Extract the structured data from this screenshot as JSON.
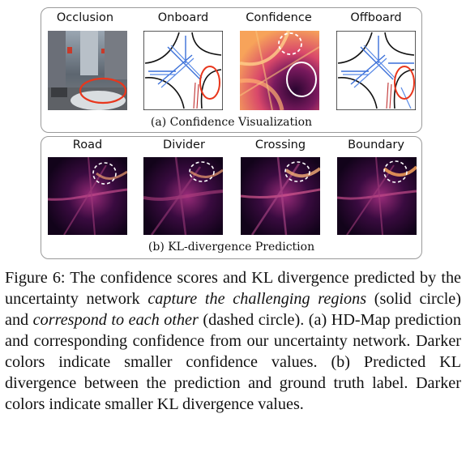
{
  "panel_a": {
    "labels": [
      "Occlusion",
      "Onboard",
      "Confidence",
      "Offboard"
    ],
    "caption": "(a) Confidence Visualization"
  },
  "panel_b": {
    "labels": [
      "Road",
      "Divider",
      "Crossing",
      "Boundary"
    ],
    "caption": "(b) KL-divergence Prediction"
  },
  "figure_caption": {
    "prefix": "Figure 6:  The confidence scores and KL divergence predicted by the uncertainty network ",
    "em1": "capture the challenging regions",
    "mid1": " (solid circle) and ",
    "em2": "correspond to each other",
    "rest": " (dashed circle).  (a) HD-Map prediction and corresponding confidence from our uncertainty network. Darker colors indicate smaller confidence values. (b) Predicted KL divergence between the prediction and ground truth label. Darker colors indicate smaller KL divergence values."
  },
  "colors": {
    "border": "#9a9a9a",
    "solid_circle_red": "#e8361c",
    "heat_dark": "#1a0420",
    "heat_mid": "#8a1f6a",
    "heat_bright": "#f7a35a",
    "map_blue": "#3a6fd8"
  }
}
